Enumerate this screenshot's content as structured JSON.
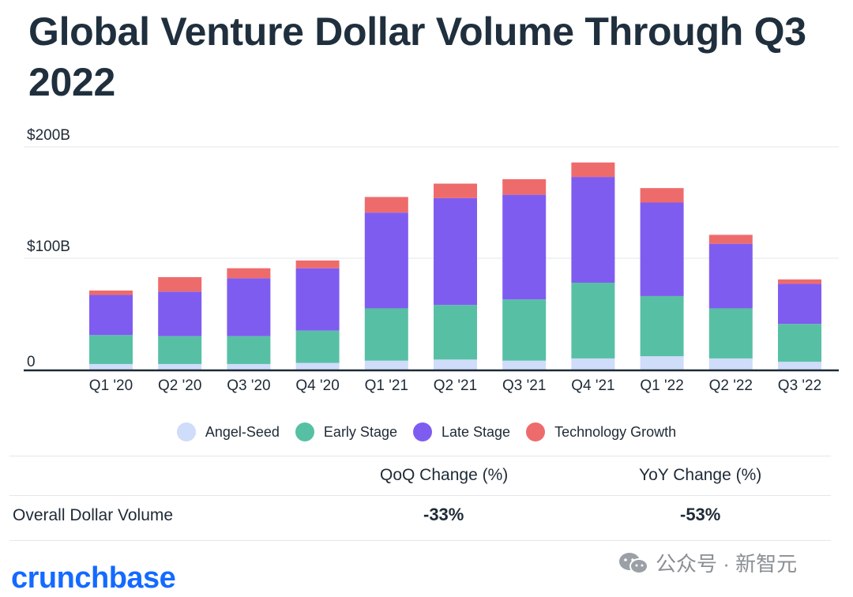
{
  "title": "Global Venture Dollar Volume Through Q3 2022",
  "chart_data": {
    "type": "bar",
    "stacked": true,
    "title": "Global Venture Dollar Volume Through Q3 2022",
    "xlabel": "",
    "ylabel": "",
    "ylim": [
      0,
      200
    ],
    "y_ticks": [
      {
        "value": 0,
        "label": "0"
      },
      {
        "value": 100,
        "label": "$100B"
      },
      {
        "value": 200,
        "label": "$200B"
      }
    ],
    "categories": [
      "Q1 '20",
      "Q2 '20",
      "Q3 '20",
      "Q4 '20",
      "Q1 '21",
      "Q2 '21",
      "Q3 '21",
      "Q4 '21",
      "Q1 '22",
      "Q2 '22",
      "Q3 '22"
    ],
    "series": [
      {
        "name": "Angel-Seed",
        "color": "#cfdcfa",
        "values": [
          5,
          5,
          5,
          6,
          8,
          9,
          8,
          10,
          12,
          10,
          7
        ]
      },
      {
        "name": "Early Stage",
        "color": "#57c0a4",
        "values": [
          26,
          25,
          25,
          29,
          47,
          49,
          55,
          68,
          54,
          45,
          34
        ]
      },
      {
        "name": "Late Stage",
        "color": "#7f5cf0",
        "values": [
          36,
          40,
          52,
          56,
          86,
          96,
          94,
          95,
          84,
          58,
          36
        ]
      },
      {
        "name": "Technology Growth",
        "color": "#ee6b6c",
        "values": [
          4,
          13,
          9,
          7,
          14,
          13,
          14,
          13,
          13,
          8,
          4
        ]
      }
    ],
    "legend_position": "bottom"
  },
  "table": {
    "headers": [
      "QoQ Change (%)",
      "YoY Change (%)"
    ],
    "row_label": "Overall Dollar Volume",
    "values": [
      "-33%",
      "-53%"
    ]
  },
  "brand": "crunchbase",
  "watermark": "公众号 · 新智元"
}
